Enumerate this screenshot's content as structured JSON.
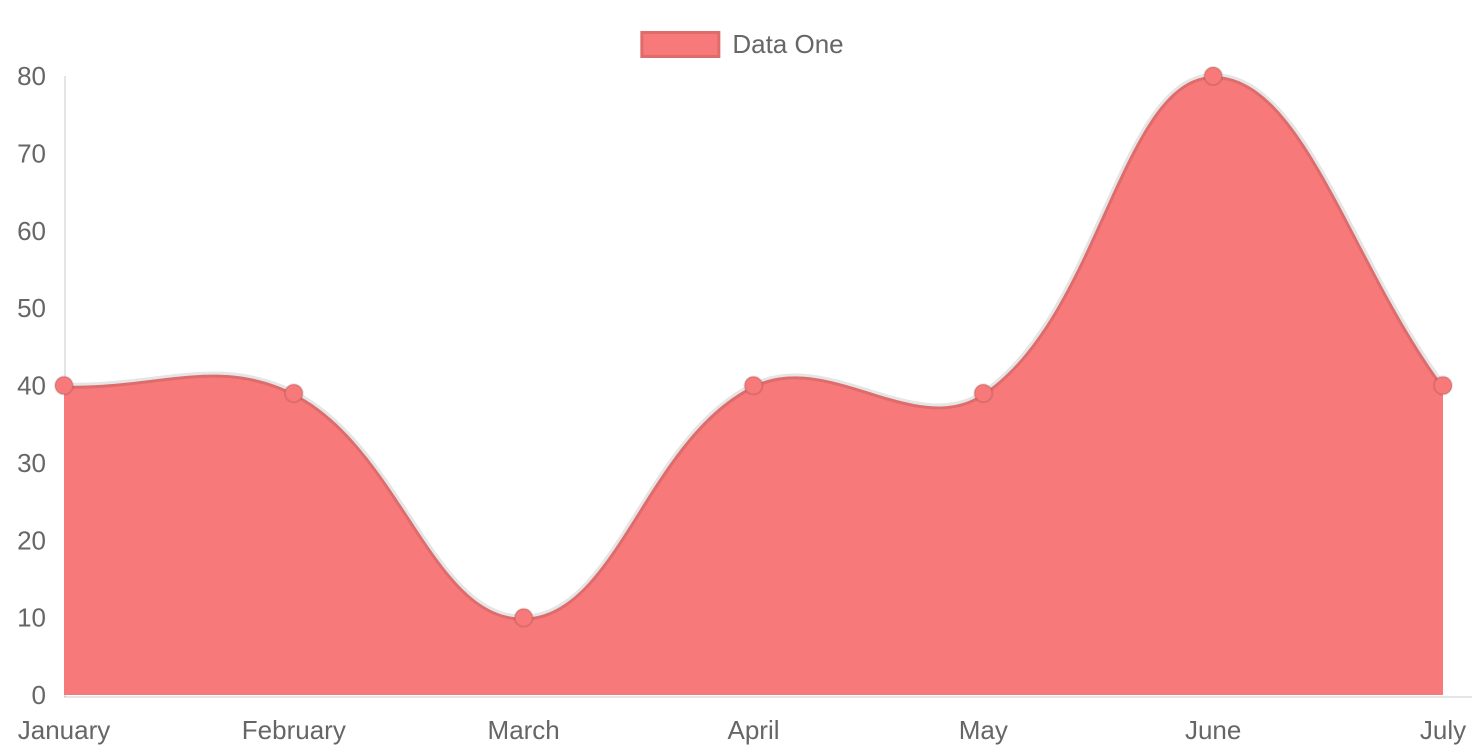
{
  "legend": {
    "label": "Data One",
    "position": "top"
  },
  "colors": {
    "fill": "#f87979",
    "line": "rgba(0,0,0,0.1)",
    "point_fill": "#f87979",
    "point_border": "rgba(0,0,0,0.1)",
    "axis_line": "rgba(0,0,0,0.1)",
    "tick_text": "#666666"
  },
  "chart_data": {
    "type": "area",
    "categories": [
      "January",
      "February",
      "March",
      "April",
      "May",
      "June",
      "July"
    ],
    "series": [
      {
        "name": "Data One",
        "values": [
          40,
          39,
          10,
          40,
          39,
          80,
          40
        ],
        "fill_color": "#f87979",
        "line_color": "rgba(0,0,0,0.1)"
      }
    ],
    "title": "",
    "xlabel": "",
    "ylabel": "",
    "ylim": [
      0,
      80
    ],
    "y_ticks": [
      0,
      10,
      20,
      30,
      40,
      50,
      60,
      70,
      80
    ],
    "grid": false,
    "legend_position": "top",
    "line_tension": 0.4
  }
}
